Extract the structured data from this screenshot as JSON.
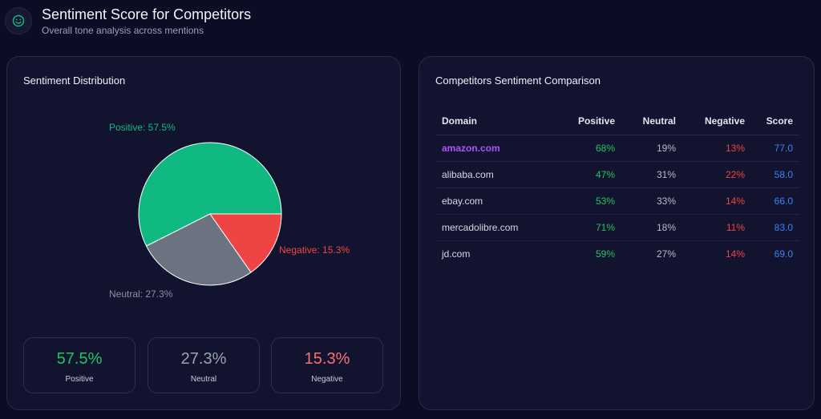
{
  "header": {
    "icon": "smiley-icon",
    "title": "Sentiment Score for Competitors",
    "subtitle": "Overall tone analysis across mentions"
  },
  "distribution": {
    "title": "Sentiment Distribution",
    "chart_data": {
      "type": "pie",
      "slices": [
        {
          "name": "Positive",
          "value": 57.5,
          "label": "Positive: 57.5%",
          "color": "#10b981"
        },
        {
          "name": "Neutral",
          "value": 27.3,
          "label": "Neutral: 27.3%",
          "color": "#6b7280"
        },
        {
          "name": "Negative",
          "value": 15.3,
          "label": "Negative: 15.3%",
          "color": "#ef4444"
        }
      ]
    },
    "stats": [
      {
        "value": "57.5%",
        "label": "Positive",
        "color": "#22c55e"
      },
      {
        "value": "27.3%",
        "label": "Neutral",
        "color": "#9ca3af"
      },
      {
        "value": "15.3%",
        "label": "Negative",
        "color": "#f87171"
      }
    ]
  },
  "comparison": {
    "title": "Competitors Sentiment Comparison",
    "columns": [
      "Domain",
      "Positive",
      "Neutral",
      "Negative",
      "Score"
    ],
    "rows": [
      {
        "domain": "amazon.com",
        "positive": "68%",
        "neutral": "19%",
        "negative": "13%",
        "score": "77.0",
        "highlight": true
      },
      {
        "domain": "alibaba.com",
        "positive": "47%",
        "neutral": "31%",
        "negative": "22%",
        "score": "58.0",
        "highlight": false
      },
      {
        "domain": "ebay.com",
        "positive": "53%",
        "neutral": "33%",
        "negative": "14%",
        "score": "66.0",
        "highlight": false
      },
      {
        "domain": "mercadolibre.com",
        "positive": "71%",
        "neutral": "18%",
        "negative": "11%",
        "score": "83.0",
        "highlight": false
      },
      {
        "domain": "jd.com",
        "positive": "59%",
        "neutral": "27%",
        "negative": "14%",
        "score": "69.0",
        "highlight": false
      }
    ]
  }
}
